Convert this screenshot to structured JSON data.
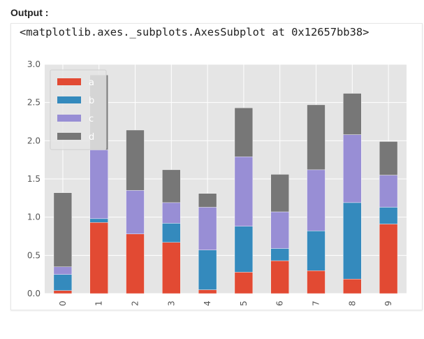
{
  "header": {
    "output_label": "Output :",
    "repr_text": "<matplotlib.axes._subplots.AxesSubplot at 0x12657bb38>"
  },
  "chart_data": {
    "type": "bar",
    "stacked": true,
    "categories": [
      "0",
      "1",
      "2",
      "3",
      "4",
      "5",
      "6",
      "7",
      "8",
      "9"
    ],
    "series": [
      {
        "name": "a",
        "color": "#E24A33",
        "values": [
          0.04,
          0.93,
          0.78,
          0.67,
          0.05,
          0.28,
          0.43,
          0.3,
          0.19,
          0.91
        ]
      },
      {
        "name": "b",
        "color": "#348ABD",
        "values": [
          0.21,
          0.05,
          0.0,
          0.25,
          0.52,
          0.6,
          0.16,
          0.52,
          1.0,
          0.22
        ]
      },
      {
        "name": "c",
        "color": "#988ED5",
        "values": [
          0.1,
          0.9,
          0.57,
          0.27,
          0.56,
          0.91,
          0.48,
          0.8,
          0.89,
          0.42
        ]
      },
      {
        "name": "d",
        "color": "#777777",
        "values": [
          0.97,
          0.98,
          0.79,
          0.43,
          0.18,
          0.64,
          0.49,
          0.85,
          0.54,
          0.44
        ]
      }
    ],
    "yticks": [
      "0.0",
      "0.5",
      "1.0",
      "1.5",
      "2.0",
      "2.5",
      "3.0"
    ],
    "ylim": [
      0,
      3.0
    ],
    "xlabel": "",
    "ylabel": "",
    "title": "",
    "grid": true,
    "legend_position": "top-left",
    "style": "ggplot",
    "background_color": "#E5E5E5",
    "grid_color": "#FFFFFF"
  }
}
